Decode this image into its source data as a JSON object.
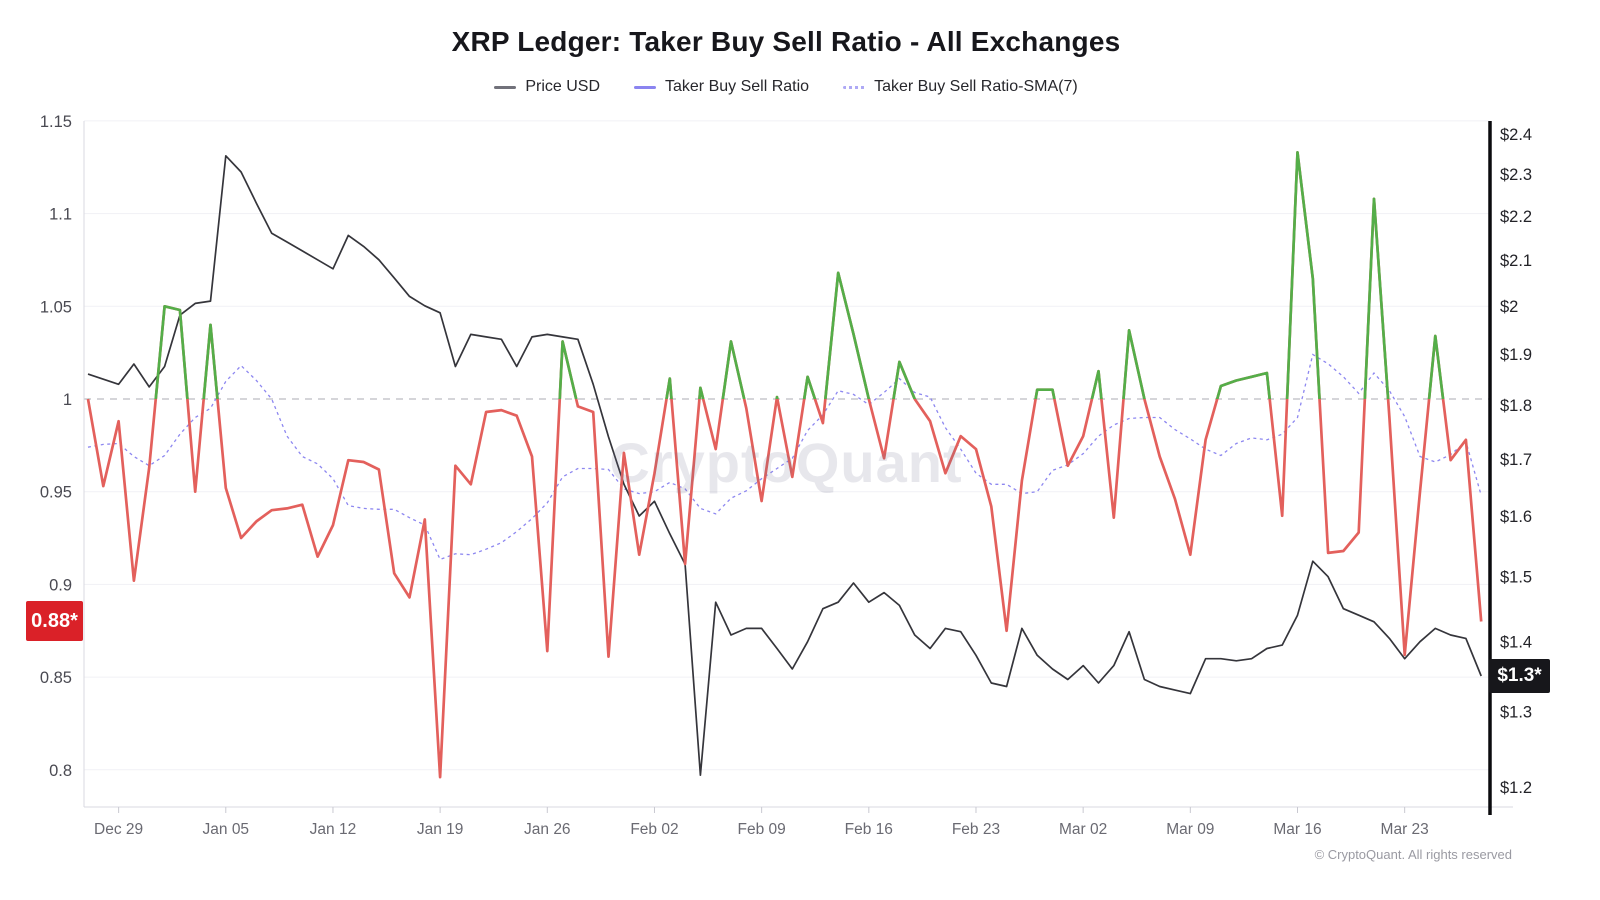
{
  "header": {
    "title": "XRP Ledger: Taker Buy Sell Ratio - All Exchanges",
    "legend": [
      {
        "label": "Price USD",
        "swatch_color": "#71717a",
        "style": "solid"
      },
      {
        "label": "Taker Buy Sell Ratio",
        "swatch_color": "#8b84f0",
        "style": "solid"
      },
      {
        "label": "Taker Buy Sell Ratio-SMA(7)",
        "swatch_color": "#aea9f5",
        "style": "dotted"
      }
    ]
  },
  "watermark": "CryptoQuant",
  "footer": {
    "copyright": "© CryptoQuant. All rights reserved"
  },
  "axes": {
    "left": {
      "tick_labels": [
        "1.15",
        "1.1",
        "1.05",
        "1",
        "0.95",
        "0.9",
        "0.85",
        "0.8"
      ],
      "current_badge": "0.88*",
      "badge_color": "#da2128"
    },
    "right": {
      "tick_labels": [
        "$2.4",
        "$2.3",
        "$2.2",
        "$2.1",
        "$2",
        "$1.9",
        "$1.8",
        "$1.7",
        "$1.6",
        "$1.5",
        "$1.4",
        "$1.3",
        "$1.2"
      ],
      "current_badge": "$1.3*",
      "badge_color": "#17171b",
      "scale": "log"
    },
    "x": {
      "tick_labels": [
        "Dec 29",
        "Jan 05",
        "Jan 12",
        "Jan 19",
        "Jan 26",
        "Feb 02",
        "Feb 09",
        "Feb 16",
        "Feb 23",
        "Mar 02",
        "Mar 09",
        "Mar 16",
        "Mar 23"
      ],
      "tick_indices": [
        2,
        9,
        16,
        23,
        30,
        37,
        44,
        51,
        58,
        65,
        72,
        79,
        86
      ]
    }
  },
  "chart_data": {
    "type": "line",
    "title": "XRP Ledger: Taker Buy Sell Ratio - All Exchanges",
    "reference_line": 1.0,
    "left_axis_range": [
      0.8,
      1.15
    ],
    "right_axis_range": [
      1.2,
      2.4
    ],
    "right_axis_scale": "log",
    "grid": true,
    "legend_position": "top",
    "x_dates": [
      "Dec 27",
      "Dec 28",
      "Dec 29",
      "Dec 30",
      "Dec 31",
      "Jan 01",
      "Jan 02",
      "Jan 03",
      "Jan 04",
      "Jan 05",
      "Jan 06",
      "Jan 07",
      "Jan 08",
      "Jan 09",
      "Jan 10",
      "Jan 11",
      "Jan 12",
      "Jan 13",
      "Jan 14",
      "Jan 15",
      "Jan 16",
      "Jan 17",
      "Jan 18",
      "Jan 19",
      "Jan 20",
      "Jan 21",
      "Jan 22",
      "Jan 23",
      "Jan 24",
      "Jan 25",
      "Jan 26",
      "Jan 27",
      "Jan 28",
      "Jan 29",
      "Jan 30",
      "Jan 31",
      "Feb 01",
      "Feb 02",
      "Feb 03",
      "Feb 04",
      "Feb 05",
      "Feb 06",
      "Feb 07",
      "Feb 08",
      "Feb 09",
      "Feb 10",
      "Feb 11",
      "Feb 12",
      "Feb 13",
      "Feb 14",
      "Feb 15",
      "Feb 16",
      "Feb 17",
      "Feb 18",
      "Feb 19",
      "Feb 20",
      "Feb 21",
      "Feb 22",
      "Feb 23",
      "Feb 24",
      "Feb 25",
      "Feb 26",
      "Feb 27",
      "Feb 28",
      "Mar 01",
      "Mar 02",
      "Mar 03",
      "Mar 04",
      "Mar 05",
      "Mar 06",
      "Mar 07",
      "Mar 08",
      "Mar 09",
      "Mar 10",
      "Mar 11",
      "Mar 12",
      "Mar 13",
      "Mar 14",
      "Mar 15",
      "Mar 16",
      "Mar 17",
      "Mar 18",
      "Mar 19",
      "Mar 20",
      "Mar 21",
      "Mar 22",
      "Mar 23",
      "Mar 24",
      "Mar 25",
      "Mar 26",
      "Mar 27",
      "Mar 28"
    ],
    "series": [
      {
        "name": "Price USD",
        "axis": "right",
        "color": "#35353b",
        "values": [
          1.86,
          1.85,
          1.84,
          1.88,
          1.835,
          1.875,
          1.98,
          2.005,
          2.01,
          2.345,
          2.305,
          2.23,
          2.16,
          2.14,
          2.12,
          2.1,
          2.08,
          2.155,
          2.13,
          2.1,
          2.06,
          2.02,
          2.0,
          1.985,
          1.875,
          1.94,
          1.935,
          1.93,
          1.875,
          1.935,
          1.94,
          1.935,
          1.93,
          1.84,
          1.74,
          1.655,
          1.6,
          1.625,
          1.57,
          1.52,
          1.215,
          1.46,
          1.41,
          1.42,
          1.42,
          1.39,
          1.36,
          1.4,
          1.45,
          1.46,
          1.49,
          1.46,
          1.475,
          1.455,
          1.41,
          1.39,
          1.42,
          1.415,
          1.38,
          1.34,
          1.335,
          1.42,
          1.38,
          1.36,
          1.345,
          1.365,
          1.34,
          1.365,
          1.415,
          1.345,
          1.335,
          1.33,
          1.325,
          1.375,
          1.375,
          1.372,
          1.375,
          1.39,
          1.395,
          1.44,
          1.525,
          1.5,
          1.45,
          1.44,
          1.43,
          1.405,
          1.375,
          1.4,
          1.42,
          1.41,
          1.405,
          1.35
        ]
      },
      {
        "name": "Taker Buy Sell Ratio",
        "axis": "left",
        "color_above_1": "#54ae49",
        "color_below_1": "#e3605c",
        "values": [
          1.0,
          0.953,
          0.988,
          0.902,
          0.963,
          1.05,
          1.048,
          0.95,
          1.04,
          0.952,
          0.925,
          0.934,
          0.94,
          0.941,
          0.943,
          0.915,
          0.932,
          0.967,
          0.966,
          0.962,
          0.906,
          0.893,
          0.935,
          0.796,
          0.964,
          0.954,
          0.993,
          0.994,
          0.991,
          0.969,
          0.864,
          1.031,
          0.996,
          0.993,
          0.861,
          0.971,
          0.916,
          0.96,
          1.011,
          0.911,
          1.006,
          0.973,
          1.031,
          0.995,
          0.945,
          1.001,
          0.958,
          1.012,
          0.987,
          1.068,
          1.035,
          1.0,
          0.968,
          1.02,
          1.0,
          0.988,
          0.96,
          0.98,
          0.973,
          0.942,
          0.875,
          0.956,
          1.005,
          1.005,
          0.964,
          0.98,
          1.015,
          0.936,
          1.037,
          1.0,
          0.969,
          0.946,
          0.916,
          0.978,
          1.007,
          1.01,
          1.012,
          1.014,
          0.937,
          1.133,
          1.065,
          0.917,
          0.918,
          0.928,
          1.108,
          0.99,
          0.862,
          0.95,
          1.034,
          0.967,
          0.978,
          0.88
        ]
      },
      {
        "name": "Taker Buy Sell Ratio-SMA(7)",
        "axis": "left",
        "color": "#8d87f0",
        "line_style": "dotted",
        "values": [
          0.974,
          0.9755,
          0.976,
          0.969,
          0.964,
          0.9695,
          0.981,
          0.99,
          0.995,
          1.0095,
          1.018,
          1.01,
          1.0,
          0.98,
          0.969,
          0.965,
          0.957,
          0.9425,
          0.941,
          0.9405,
          0.9405,
          0.936,
          0.932,
          0.9135,
          0.9165,
          0.916,
          0.919,
          0.9225,
          0.9285,
          0.9355,
          0.944,
          0.958,
          0.9625,
          0.9625,
          0.962,
          0.9515,
          0.949,
          0.95,
          0.955,
          0.9515,
          0.941,
          0.938,
          0.9465,
          0.9505,
          0.957,
          0.9625,
          0.968,
          0.983,
          0.9915,
          1.0045,
          1.0025,
          0.997,
          1.0035,
          1.011,
          1.0035,
          1.001,
          0.9845,
          0.973,
          0.96,
          0.954,
          0.954,
          0.949,
          0.95,
          0.9615,
          0.9645,
          0.9705,
          0.98,
          0.986,
          0.9895,
          0.99,
          0.99,
          0.9835,
          0.9785,
          0.973,
          0.9695,
          0.976,
          0.979,
          0.978,
          0.981,
          0.99,
          1.024,
          1.019,
          1.012,
          1.003,
          1.014,
          1.0045,
          0.9905,
          0.969,
          0.966,
          0.97,
          0.977,
          0.948
        ]
      }
    ]
  }
}
